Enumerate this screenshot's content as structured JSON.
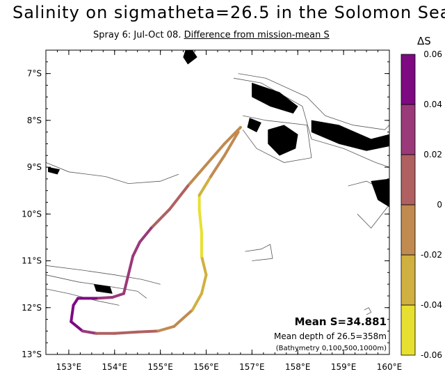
{
  "title": "Salinity on sigmatheta=26.5 in the Solomon Sea",
  "subtitle_prefix": "Spray 6: Jul-Oct 08.",
  "subtitle_link": "Difference from mission-mean S",
  "colorbar_title": "ΔS",
  "annotations": {
    "mean_s": "Mean S=34.881",
    "mean_depth": "Mean depth of 26.5=358m",
    "bathymetry": "(Bathymetry 0,100,500,1000m)"
  },
  "colors": {
    "land": "#000000",
    "contour": "#555555",
    "frame": "#000000"
  },
  "chart_data": {
    "type": "scatter",
    "xlabel": "",
    "ylabel": "",
    "xlim": [
      152.5,
      160
    ],
    "ylim": [
      -13,
      -6.5
    ],
    "x_ticks": [
      153,
      154,
      155,
      156,
      157,
      158,
      159,
      160
    ],
    "x_tick_labels": [
      "153°E",
      "154°E",
      "155°E",
      "156°E",
      "157°E",
      "158°E",
      "159°E",
      "160°E"
    ],
    "y_ticks": [
      -7,
      -8,
      -9,
      -10,
      -11,
      -12,
      -13
    ],
    "y_tick_labels": [
      "7°S",
      "8°S",
      "9°S",
      "10°S",
      "11°S",
      "12°S",
      "13°S"
    ],
    "colorbar": {
      "levels": [
        -0.06,
        -0.04,
        -0.02,
        0,
        0.02,
        0.04,
        0.06
      ],
      "tick_labels": [
        "-0.06",
        "-0.04",
        "-0.02",
        "0",
        "0.02",
        "0.04",
        "0.06"
      ],
      "colors": [
        "#e8e030",
        "#d0b040",
        "#c08a50",
        "#b06060",
        "#9a3a78",
        "#7e0a82"
      ]
    },
    "track": [
      {
        "lon": 156.75,
        "lat": -8.15,
        "ds": -0.015
      },
      {
        "lon": 156.4,
        "lat": -8.5,
        "ds": -0.01
      },
      {
        "lon": 156.0,
        "lat": -8.95,
        "ds": -0.005
      },
      {
        "lon": 155.6,
        "lat": -9.4,
        "ds": 0.005
      },
      {
        "lon": 155.2,
        "lat": -9.9,
        "ds": 0.015
      },
      {
        "lon": 154.8,
        "lat": -10.3,
        "ds": 0.02
      },
      {
        "lon": 154.55,
        "lat": -10.6,
        "ds": 0.022
      },
      {
        "lon": 154.4,
        "lat": -10.9,
        "ds": 0.02
      },
      {
        "lon": 154.3,
        "lat": -11.3,
        "ds": 0.022
      },
      {
        "lon": 154.2,
        "lat": -11.7,
        "ds": 0.025
      },
      {
        "lon": 153.95,
        "lat": -11.78,
        "ds": 0.03
      },
      {
        "lon": 153.6,
        "lat": -11.8,
        "ds": 0.035
      },
      {
        "lon": 153.2,
        "lat": -11.8,
        "ds": 0.05
      },
      {
        "lon": 153.1,
        "lat": -11.95,
        "ds": 0.055
      },
      {
        "lon": 153.05,
        "lat": -12.3,
        "ds": 0.05
      },
      {
        "lon": 153.3,
        "lat": -12.5,
        "ds": 0.035
      },
      {
        "lon": 153.6,
        "lat": -12.55,
        "ds": 0.02
      },
      {
        "lon": 154.0,
        "lat": -12.55,
        "ds": 0.02
      },
      {
        "lon": 154.5,
        "lat": -12.52,
        "ds": 0.015
      },
      {
        "lon": 154.95,
        "lat": -12.5,
        "ds": 0.0
      },
      {
        "lon": 155.3,
        "lat": -12.4,
        "ds": -0.01
      },
      {
        "lon": 155.7,
        "lat": -12.05,
        "ds": -0.02
      },
      {
        "lon": 155.9,
        "lat": -11.7,
        "ds": -0.03
      },
      {
        "lon": 156.0,
        "lat": -11.3,
        "ds": -0.035
      },
      {
        "lon": 155.9,
        "lat": -10.9,
        "ds": -0.04
      },
      {
        "lon": 155.9,
        "lat": -10.4,
        "ds": -0.05
      },
      {
        "lon": 155.85,
        "lat": -9.9,
        "ds": -0.055
      },
      {
        "lon": 155.85,
        "lat": -9.6,
        "ds": -0.04
      },
      {
        "lon": 156.1,
        "lat": -9.2,
        "ds": -0.02
      },
      {
        "lon": 156.4,
        "lat": -8.75,
        "ds": -0.01
      },
      {
        "lon": 156.7,
        "lat": -8.25,
        "ds": -0.005
      }
    ],
    "land": [
      [
        [
          157.0,
          -7.2
        ],
        [
          157.6,
          -7.4
        ],
        [
          158.0,
          -7.7
        ],
        [
          157.9,
          -7.85
        ],
        [
          157.4,
          -7.7
        ],
        [
          157.0,
          -7.5
        ]
      ],
      [
        [
          158.3,
          -8.0
        ],
        [
          158.9,
          -8.1
        ],
        [
          159.6,
          -8.4
        ],
        [
          160.0,
          -8.3
        ],
        [
          160.0,
          -8.55
        ],
        [
          159.5,
          -8.65
        ],
        [
          158.9,
          -8.5
        ],
        [
          158.3,
          -8.25
        ]
      ],
      [
        [
          157.35,
          -8.2
        ],
        [
          157.7,
          -8.1
        ],
        [
          158.0,
          -8.3
        ],
        [
          157.95,
          -8.6
        ],
        [
          157.6,
          -8.75
        ],
        [
          157.35,
          -8.5
        ]
      ],
      [
        [
          156.95,
          -7.95
        ],
        [
          157.2,
          -8.05
        ],
        [
          157.1,
          -8.25
        ],
        [
          156.9,
          -8.15
        ]
      ],
      [
        [
          159.6,
          -9.3
        ],
        [
          160.0,
          -9.25
        ],
        [
          160.0,
          -9.85
        ],
        [
          159.75,
          -9.7
        ]
      ],
      [
        [
          153.55,
          -11.5
        ],
        [
          153.9,
          -11.55
        ],
        [
          153.95,
          -11.7
        ],
        [
          153.6,
          -11.65
        ]
      ],
      [
        [
          155.55,
          -6.5
        ],
        [
          155.7,
          -6.5
        ],
        [
          155.8,
          -6.65
        ],
        [
          155.6,
          -6.8
        ],
        [
          155.5,
          -6.65
        ]
      ],
      [
        [
          152.55,
          -9.0
        ],
        [
          152.8,
          -9.05
        ],
        [
          152.75,
          -9.15
        ],
        [
          152.55,
          -9.1
        ]
      ]
    ],
    "contours": [
      [
        [
          156.7,
          -7.0
        ],
        [
          157.3,
          -7.1
        ],
        [
          158.2,
          -7.5
        ],
        [
          158.6,
          -7.9
        ],
        [
          159.2,
          -8.1
        ],
        [
          159.9,
          -8.2
        ],
        [
          160.0,
          -8.1
        ]
      ],
      [
        [
          156.6,
          -7.1
        ],
        [
          157.2,
          -7.2
        ],
        [
          158.1,
          -7.7
        ],
        [
          158.3,
          -8.4
        ],
        [
          159.0,
          -8.6
        ],
        [
          159.7,
          -8.9
        ],
        [
          160.0,
          -9.0
        ]
      ],
      [
        [
          156.8,
          -7.9
        ],
        [
          157.3,
          -8.0
        ],
        [
          158.2,
          -8.1
        ],
        [
          158.3,
          -8.8
        ],
        [
          157.7,
          -8.9
        ],
        [
          157.1,
          -8.6
        ],
        [
          156.8,
          -8.2
        ]
      ],
      [
        [
          152.5,
          -8.9
        ],
        [
          153.0,
          -9.1
        ],
        [
          153.8,
          -9.2
        ],
        [
          154.3,
          -9.35
        ],
        [
          155.0,
          -9.3
        ],
        [
          155.4,
          -9.15
        ]
      ],
      [
        [
          152.5,
          -11.1
        ],
        [
          153.3,
          -11.2
        ],
        [
          154.0,
          -11.3
        ],
        [
          154.6,
          -11.4
        ],
        [
          155.0,
          -11.5
        ]
      ],
      [
        [
          152.5,
          -11.3
        ],
        [
          153.2,
          -11.45
        ],
        [
          153.9,
          -11.55
        ],
        [
          154.5,
          -11.65
        ],
        [
          154.7,
          -11.8
        ]
      ],
      [
        [
          152.5,
          -11.6
        ],
        [
          153.0,
          -11.7
        ],
        [
          153.6,
          -11.85
        ],
        [
          154.1,
          -11.95
        ]
      ],
      [
        [
          156.85,
          -10.8
        ],
        [
          157.2,
          -10.75
        ],
        [
          157.4,
          -10.65
        ],
        [
          157.45,
          -10.95
        ],
        [
          157.0,
          -11.0
        ]
      ],
      [
        [
          159.1,
          -9.4
        ],
        [
          159.5,
          -9.3
        ],
        [
          159.9,
          -9.5
        ],
        [
          160.0,
          -9.8
        ],
        [
          159.6,
          -10.3
        ],
        [
          159.3,
          -10.0
        ]
      ],
      [
        [
          159.45,
          -12.05
        ],
        [
          159.55,
          -12.0
        ],
        [
          159.6,
          -12.1
        ],
        [
          159.5,
          -12.15
        ]
      ]
    ]
  }
}
